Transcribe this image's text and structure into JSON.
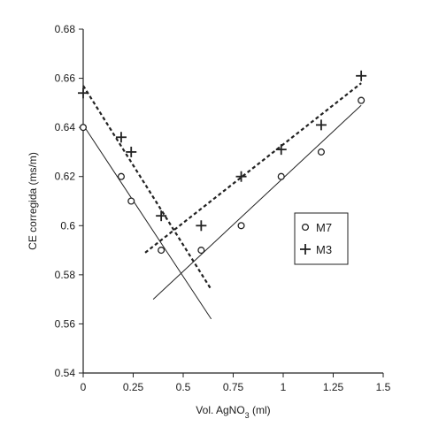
{
  "chart_data": {
    "type": "scatter",
    "title": "",
    "xlabel": {
      "prefix": "Vol. AgNO",
      "sub": "3",
      "suffix": " (ml)"
    },
    "ylabel": "CE corregida (ms/m)",
    "xlim": [
      0,
      1.5
    ],
    "ylim": [
      0.54,
      0.68
    ],
    "xticks": [
      0,
      0.25,
      0.5,
      0.75,
      1,
      1.25,
      1.5
    ],
    "xtick_labels": [
      "0",
      "0.25",
      "0.5",
      "0.75",
      "1",
      "1.25",
      "1.5"
    ],
    "yticks": [
      0.54,
      0.56,
      0.58,
      0.6,
      0.62,
      0.64,
      0.66,
      0.68
    ],
    "ytick_labels": [
      "0.54",
      "0.56",
      "0.58",
      "0.6",
      "0.62",
      "0.64",
      "0.66",
      "0.68"
    ],
    "grid": false,
    "legend_position": "right-middle",
    "series": [
      {
        "name": "M7",
        "marker": "circle",
        "line_style": "solid",
        "points": [
          {
            "x": 0,
            "y": 0.64
          },
          {
            "x": 0.19,
            "y": 0.62
          },
          {
            "x": 0.24,
            "y": 0.61
          },
          {
            "x": 0.39,
            "y": 0.59
          },
          {
            "x": 0.59,
            "y": 0.59
          },
          {
            "x": 0.79,
            "y": 0.6
          },
          {
            "x": 0.99,
            "y": 0.62
          },
          {
            "x": 1.19,
            "y": 0.63
          },
          {
            "x": 1.39,
            "y": 0.651
          }
        ],
        "fit_lines": [
          {
            "x": [
              0,
              0.64
            ],
            "y": [
              0.641,
              0.562
            ]
          },
          {
            "x": [
              0.35,
              1.39
            ],
            "y": [
              0.57,
              0.649
            ]
          }
        ]
      },
      {
        "name": "M3",
        "marker": "plus",
        "line_style": "dashed",
        "points": [
          {
            "x": 0,
            "y": 0.654
          },
          {
            "x": 0.19,
            "y": 0.636
          },
          {
            "x": 0.24,
            "y": 0.63
          },
          {
            "x": 0.39,
            "y": 0.604
          },
          {
            "x": 0.59,
            "y": 0.6
          },
          {
            "x": 0.79,
            "y": 0.62
          },
          {
            "x": 0.99,
            "y": 0.631
          },
          {
            "x": 1.19,
            "y": 0.641
          },
          {
            "x": 1.39,
            "y": 0.661
          }
        ],
        "fit_lines": [
          {
            "x": [
              0,
              0.64
            ],
            "y": [
              0.657,
              0.574
            ]
          },
          {
            "x": [
              0.31,
              1.39
            ],
            "y": [
              0.589,
              0.658
            ]
          }
        ]
      }
    ]
  }
}
